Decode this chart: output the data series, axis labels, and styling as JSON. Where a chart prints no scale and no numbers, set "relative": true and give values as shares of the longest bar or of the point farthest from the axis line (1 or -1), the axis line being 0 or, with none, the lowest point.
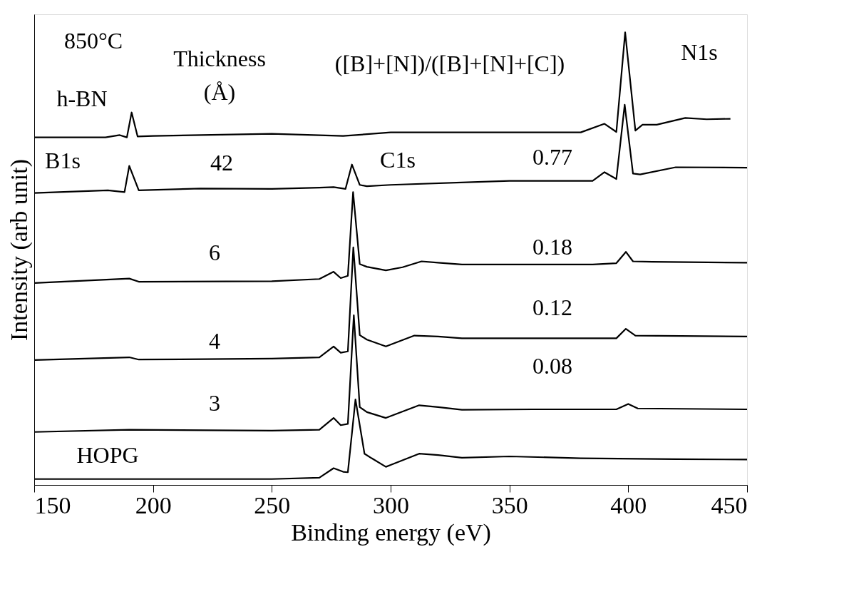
{
  "chart_data": {
    "type": "line",
    "relative": true,
    "xlabel": "Binding energy (eV)",
    "ylabel": "Intensity (arb unit)",
    "xlim": [
      150,
      450
    ],
    "xticks": [
      150,
      200,
      250,
      300,
      350,
      400,
      450
    ],
    "grid": false,
    "marker": "none",
    "line_style": "solid",
    "series": [
      {
        "color": "#000000",
        "x": [
          150,
          180,
          186,
          189,
          191,
          193.5,
          200,
          250,
          280,
          300,
          380,
          390,
          395,
          398.7,
          403,
          406,
          412,
          424,
          433,
          443
        ],
        "values": [
          0.768,
          0.768,
          0.773,
          0.768,
          0.823,
          0.77,
          0.771,
          0.776,
          0.771,
          0.779,
          0.779,
          0.798,
          0.78,
          1.0,
          0.783,
          0.796,
          0.796,
          0.811,
          0.808,
          0.809
        ]
      },
      {
        "color": "#000000",
        "x": [
          150,
          181,
          188,
          190,
          194,
          220,
          250,
          270,
          276,
          281,
          283.7,
          287,
          290,
          300,
          350,
          385,
          390,
          395,
          398.5,
          402,
          405,
          420,
          450
        ],
        "values": [
          0.645,
          0.651,
          0.647,
          0.705,
          0.651,
          0.655,
          0.654,
          0.657,
          0.658,
          0.654,
          0.708,
          0.663,
          0.66,
          0.663,
          0.672,
          0.672,
          0.691,
          0.676,
          0.84,
          0.688,
          0.686,
          0.702,
          0.701
        ]
      },
      {
        "color": "#000000",
        "x": [
          150,
          190,
          194,
          250,
          270,
          276,
          279,
          282,
          284.2,
          287,
          290,
          298,
          305,
          313,
          320,
          330,
          360,
          385,
          395,
          399,
          402,
          410,
          450
        ],
        "values": [
          0.446,
          0.456,
          0.449,
          0.45,
          0.455,
          0.471,
          0.457,
          0.462,
          0.647,
          0.488,
          0.482,
          0.474,
          0.481,
          0.494,
          0.491,
          0.487,
          0.487,
          0.487,
          0.49,
          0.515,
          0.494,
          0.493,
          0.491
        ]
      },
      {
        "color": "#000000",
        "x": [
          150,
          190,
          194,
          250,
          270,
          276,
          279,
          282,
          284.3,
          287,
          290,
          298,
          310,
          320,
          330,
          360,
          395,
          399,
          403,
          450
        ],
        "values": [
          0.276,
          0.282,
          0.277,
          0.279,
          0.282,
          0.306,
          0.292,
          0.295,
          0.525,
          0.331,
          0.321,
          0.306,
          0.33,
          0.328,
          0.324,
          0.324,
          0.324,
          0.345,
          0.33,
          0.328
        ]
      },
      {
        "color": "#000000",
        "x": [
          150,
          190,
          250,
          270,
          276,
          279,
          282,
          284.5,
          287,
          290,
          298,
          312,
          320,
          330,
          360,
          395,
          400,
          404,
          450
        ],
        "values": [
          0.117,
          0.122,
          0.12,
          0.122,
          0.148,
          0.132,
          0.135,
          0.375,
          0.172,
          0.161,
          0.148,
          0.176,
          0.172,
          0.166,
          0.167,
          0.167,
          0.179,
          0.169,
          0.167
        ]
      },
      {
        "color": "#000000",
        "x": [
          150,
          250,
          270,
          276,
          280,
          282,
          285.2,
          289,
          292,
          298,
          300,
          312,
          320,
          330,
          350,
          380,
          420,
          450
        ],
        "values": [
          0.013,
          0.013,
          0.016,
          0.037,
          0.029,
          0.028,
          0.189,
          0.069,
          0.059,
          0.04,
          0.044,
          0.069,
          0.066,
          0.06,
          0.063,
          0.059,
          0.057,
          0.056
        ]
      }
    ],
    "annotations": [
      "850°C",
      "h-BN",
      "Thickness",
      "(Å)",
      "([B]+[N])/([B]+[N]+[C])",
      "N1s",
      "B1s",
      "C1s",
      "42",
      "0.77",
      "6",
      "0.18",
      "4",
      "0.12",
      "3",
      "0.08",
      "HOPG"
    ]
  }
}
